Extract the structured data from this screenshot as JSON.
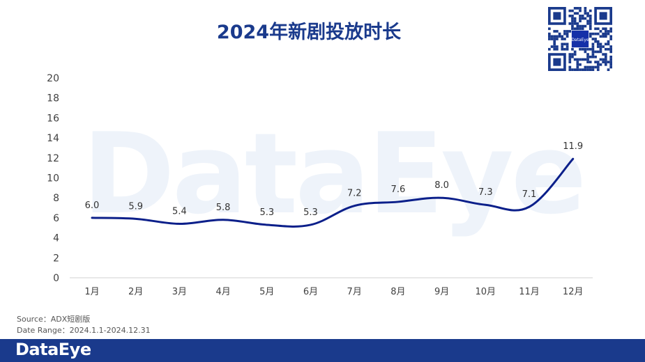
{
  "header": {
    "title": "2024年新剧投放时长"
  },
  "watermark": "DataEye",
  "qr": {
    "center_text": "DataEye"
  },
  "footnotes": {
    "source": "Source：ADX短剧版",
    "date_range": "Date Range：2024.1.1-2024.12.31"
  },
  "footer": {
    "logo": "DataEye"
  },
  "colors": {
    "line": "#0b1f8a",
    "title": "#1a3a8c",
    "footer_bar": "#1a3a8c"
  },
  "chart_data": {
    "type": "line",
    "title": "2024年新剧投放时长",
    "categories": [
      "1月",
      "2月",
      "3月",
      "4月",
      "5月",
      "6月",
      "7月",
      "8月",
      "9月",
      "10月",
      "11月",
      "12月"
    ],
    "series": [
      {
        "values": [
          6.0,
          5.9,
          5.4,
          5.8,
          5.3,
          5.3,
          7.2,
          7.6,
          8.0,
          7.3,
          7.1,
          11.9
        ]
      }
    ],
    "data_labels": [
      "6.0",
      "5.9",
      "5.4",
      "5.8",
      "5.3",
      "5.3",
      "7.2",
      "7.6",
      "8.0",
      "7.3",
      "7.1",
      "11.9"
    ],
    "ylim": [
      0,
      20
    ],
    "yticks": [
      "0",
      "2",
      "4",
      "6",
      "8",
      "10",
      "12",
      "14",
      "16",
      "18",
      "20"
    ],
    "grid": false,
    "smooth": true
  }
}
